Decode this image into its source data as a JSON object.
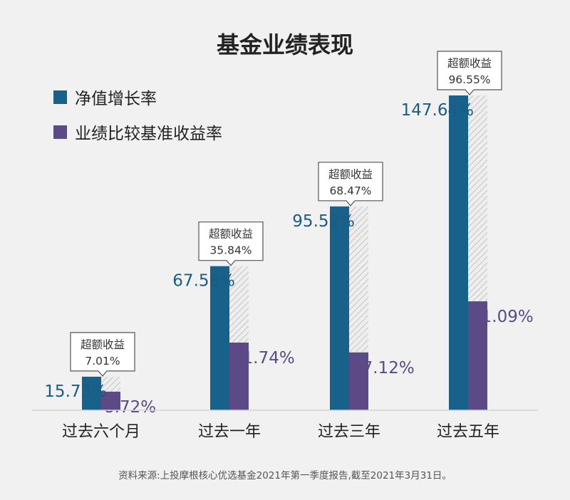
{
  "title": "基金业绩表现",
  "legend": [
    {
      "label": "净值增长率",
      "color": "#17618a"
    },
    {
      "label": "业绩比较基准收益率",
      "color": "#5b4a85"
    }
  ],
  "source_note": "资料来源:上投摩根核心优选基金2021年第一季度报告,截至2021年3月31日。",
  "colors": {
    "nav": "#17618a",
    "benchmark": "#5b4a85",
    "excess": "#d9d9d9",
    "background": "#f1f1f1"
  },
  "chart_data": {
    "type": "bar",
    "title": "基金业绩表现",
    "categories": [
      "过去六个月",
      "过去一年",
      "过去三年",
      "过去五年"
    ],
    "series": [
      {
        "name": "净值增长率",
        "values": [
          15.73,
          67.58,
          95.59,
          147.64
        ]
      },
      {
        "name": "业绩比较基准收益率",
        "values": [
          8.72,
          31.74,
          27.12,
          51.09
        ]
      }
    ],
    "excess_return": {
      "label": "超额收益",
      "values": [
        7.01,
        35.84,
        68.47,
        96.55
      ]
    },
    "value_labels": {
      "nav": [
        "15.73%",
        "67.58%",
        "95.59%",
        "147.64%"
      ],
      "benchmark": [
        "8.72%",
        "31.74%",
        "27.12%",
        "51.09%"
      ],
      "excess": [
        "7.01%",
        "35.84%",
        "68.47%",
        "96.55%"
      ]
    },
    "ylim": [
      0,
      147.64
    ],
    "legend_position": "top-left",
    "grid": false
  }
}
